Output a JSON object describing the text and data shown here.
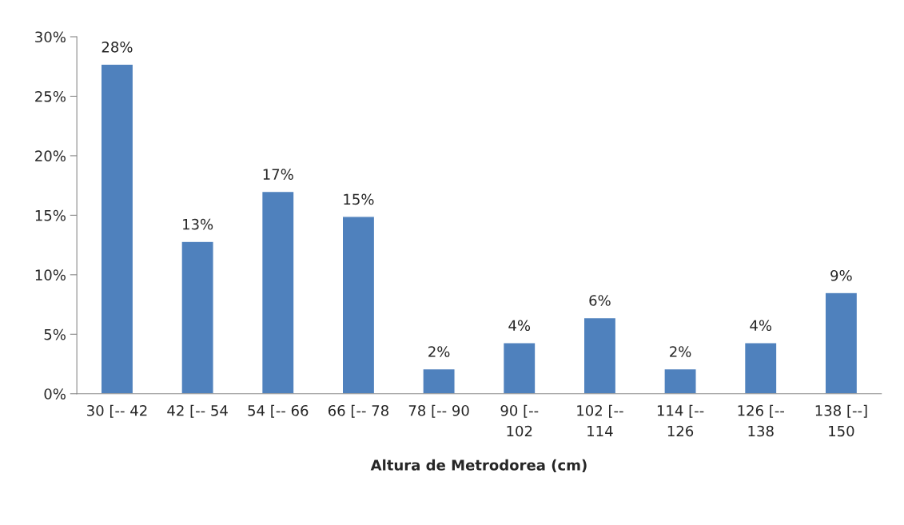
{
  "chart_data": {
    "type": "bar",
    "xlabel": "Altura de Metrodorea (cm)",
    "categories": [
      "30 [-- 42",
      "42 [-- 54",
      "54 [-- 66",
      "66 [-- 78",
      "78 [-- 90",
      "90 [--\n102",
      "102 [--\n114",
      "114 [--\n126",
      "126 [--\n138",
      "138 [--]\n150"
    ],
    "values": [
      27.7,
      12.8,
      17.0,
      14.9,
      2.1,
      4.3,
      6.4,
      2.1,
      4.3,
      8.5
    ],
    "value_labels": [
      "28%",
      "13%",
      "17%",
      "15%",
      "2%",
      "4%",
      "6%",
      "2%",
      "4%",
      "9%"
    ],
    "color": "#4f81bd",
    "ylim": [
      0,
      30
    ],
    "yticks": [
      {
        "value": 0,
        "label": "0%"
      },
      {
        "value": 5,
        "label": "5%"
      },
      {
        "value": 10,
        "label": "10%"
      },
      {
        "value": 15,
        "label": "15%"
      },
      {
        "value": 20,
        "label": "20%"
      },
      {
        "value": 25,
        "label": "25%"
      },
      {
        "value": 30,
        "label": "30%"
      }
    ],
    "grid": false,
    "legend": false
  }
}
